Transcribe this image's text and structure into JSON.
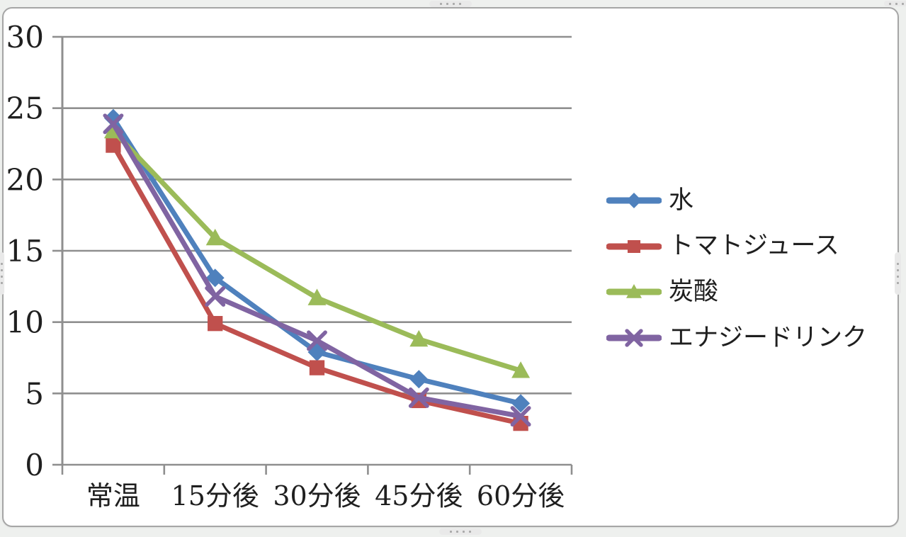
{
  "window": {
    "background_color": "#eef0ee",
    "chart_area_fill": "#ffffff",
    "chart_border_color": "#a6a6a6"
  },
  "chart_data": {
    "type": "line",
    "title": "",
    "xlabel": "",
    "ylabel": "",
    "categories": [
      "常温",
      "15分後",
      "30分後",
      "45分後",
      "60分後"
    ],
    "series": [
      {
        "name": "水",
        "color": "#4F81BD",
        "marker": "diamond",
        "values": [
          24.3,
          13.1,
          7.9,
          6.0,
          4.3
        ]
      },
      {
        "name": "トマトジュース",
        "color": "#C0504D",
        "marker": "square",
        "values": [
          22.4,
          9.9,
          6.8,
          4.5,
          2.9
        ]
      },
      {
        "name": "炭酸",
        "color": "#9BBB59",
        "marker": "triangle",
        "values": [
          23.4,
          15.9,
          11.7,
          8.8,
          6.6
        ]
      },
      {
        "name": "エナジードリンク",
        "color": "#8064A2",
        "marker": "x",
        "values": [
          23.9,
          11.8,
          8.7,
          4.7,
          3.4
        ]
      }
    ],
    "ylim": [
      0,
      30
    ],
    "yticks": [
      0,
      5,
      10,
      15,
      20,
      25,
      30
    ],
    "grid": true,
    "legend_position": "right",
    "axis_color": "#8f8f8f",
    "text_color": "#1f1f1f"
  }
}
